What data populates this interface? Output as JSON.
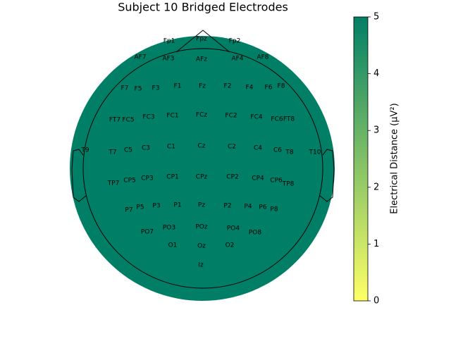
{
  "chart_data": {
    "type": "topomap",
    "title": "Subject 10 Bridged Electrodes",
    "electrodes": [
      "Fp1",
      "Fpz",
      "Fp2",
      "AF7",
      "AF3",
      "AFz",
      "AF4",
      "AF8",
      "F7",
      "F5",
      "F3",
      "F1",
      "Fz",
      "F2",
      "F4",
      "F6",
      "F8",
      "FT7",
      "FC5",
      "FC3",
      "FC1",
      "FCz",
      "FC2",
      "FC4",
      "FC6",
      "FT8",
      "T9",
      "T7",
      "C5",
      "C3",
      "C1",
      "Cz",
      "C2",
      "C4",
      "C6",
      "T8",
      "T10",
      "TP7",
      "CP5",
      "CP3",
      "CP1",
      "CPz",
      "CP2",
      "CP4",
      "CP6",
      "TP8",
      "P7",
      "P5",
      "P3",
      "P1",
      "Pz",
      "P2",
      "P4",
      "P6",
      "P8",
      "PO7",
      "PO3",
      "POz",
      "PO4",
      "PO8",
      "O1",
      "Oz",
      "O2",
      "Iz"
    ],
    "head_color": "#007f66",
    "colorbar": {
      "label": "Electrical Distance (μV²)",
      "lim": [
        0,
        5
      ],
      "ticks": [
        0,
        1,
        2,
        3,
        4,
        5
      ],
      "colors": [
        "#ffff66",
        "#007f66"
      ]
    }
  }
}
